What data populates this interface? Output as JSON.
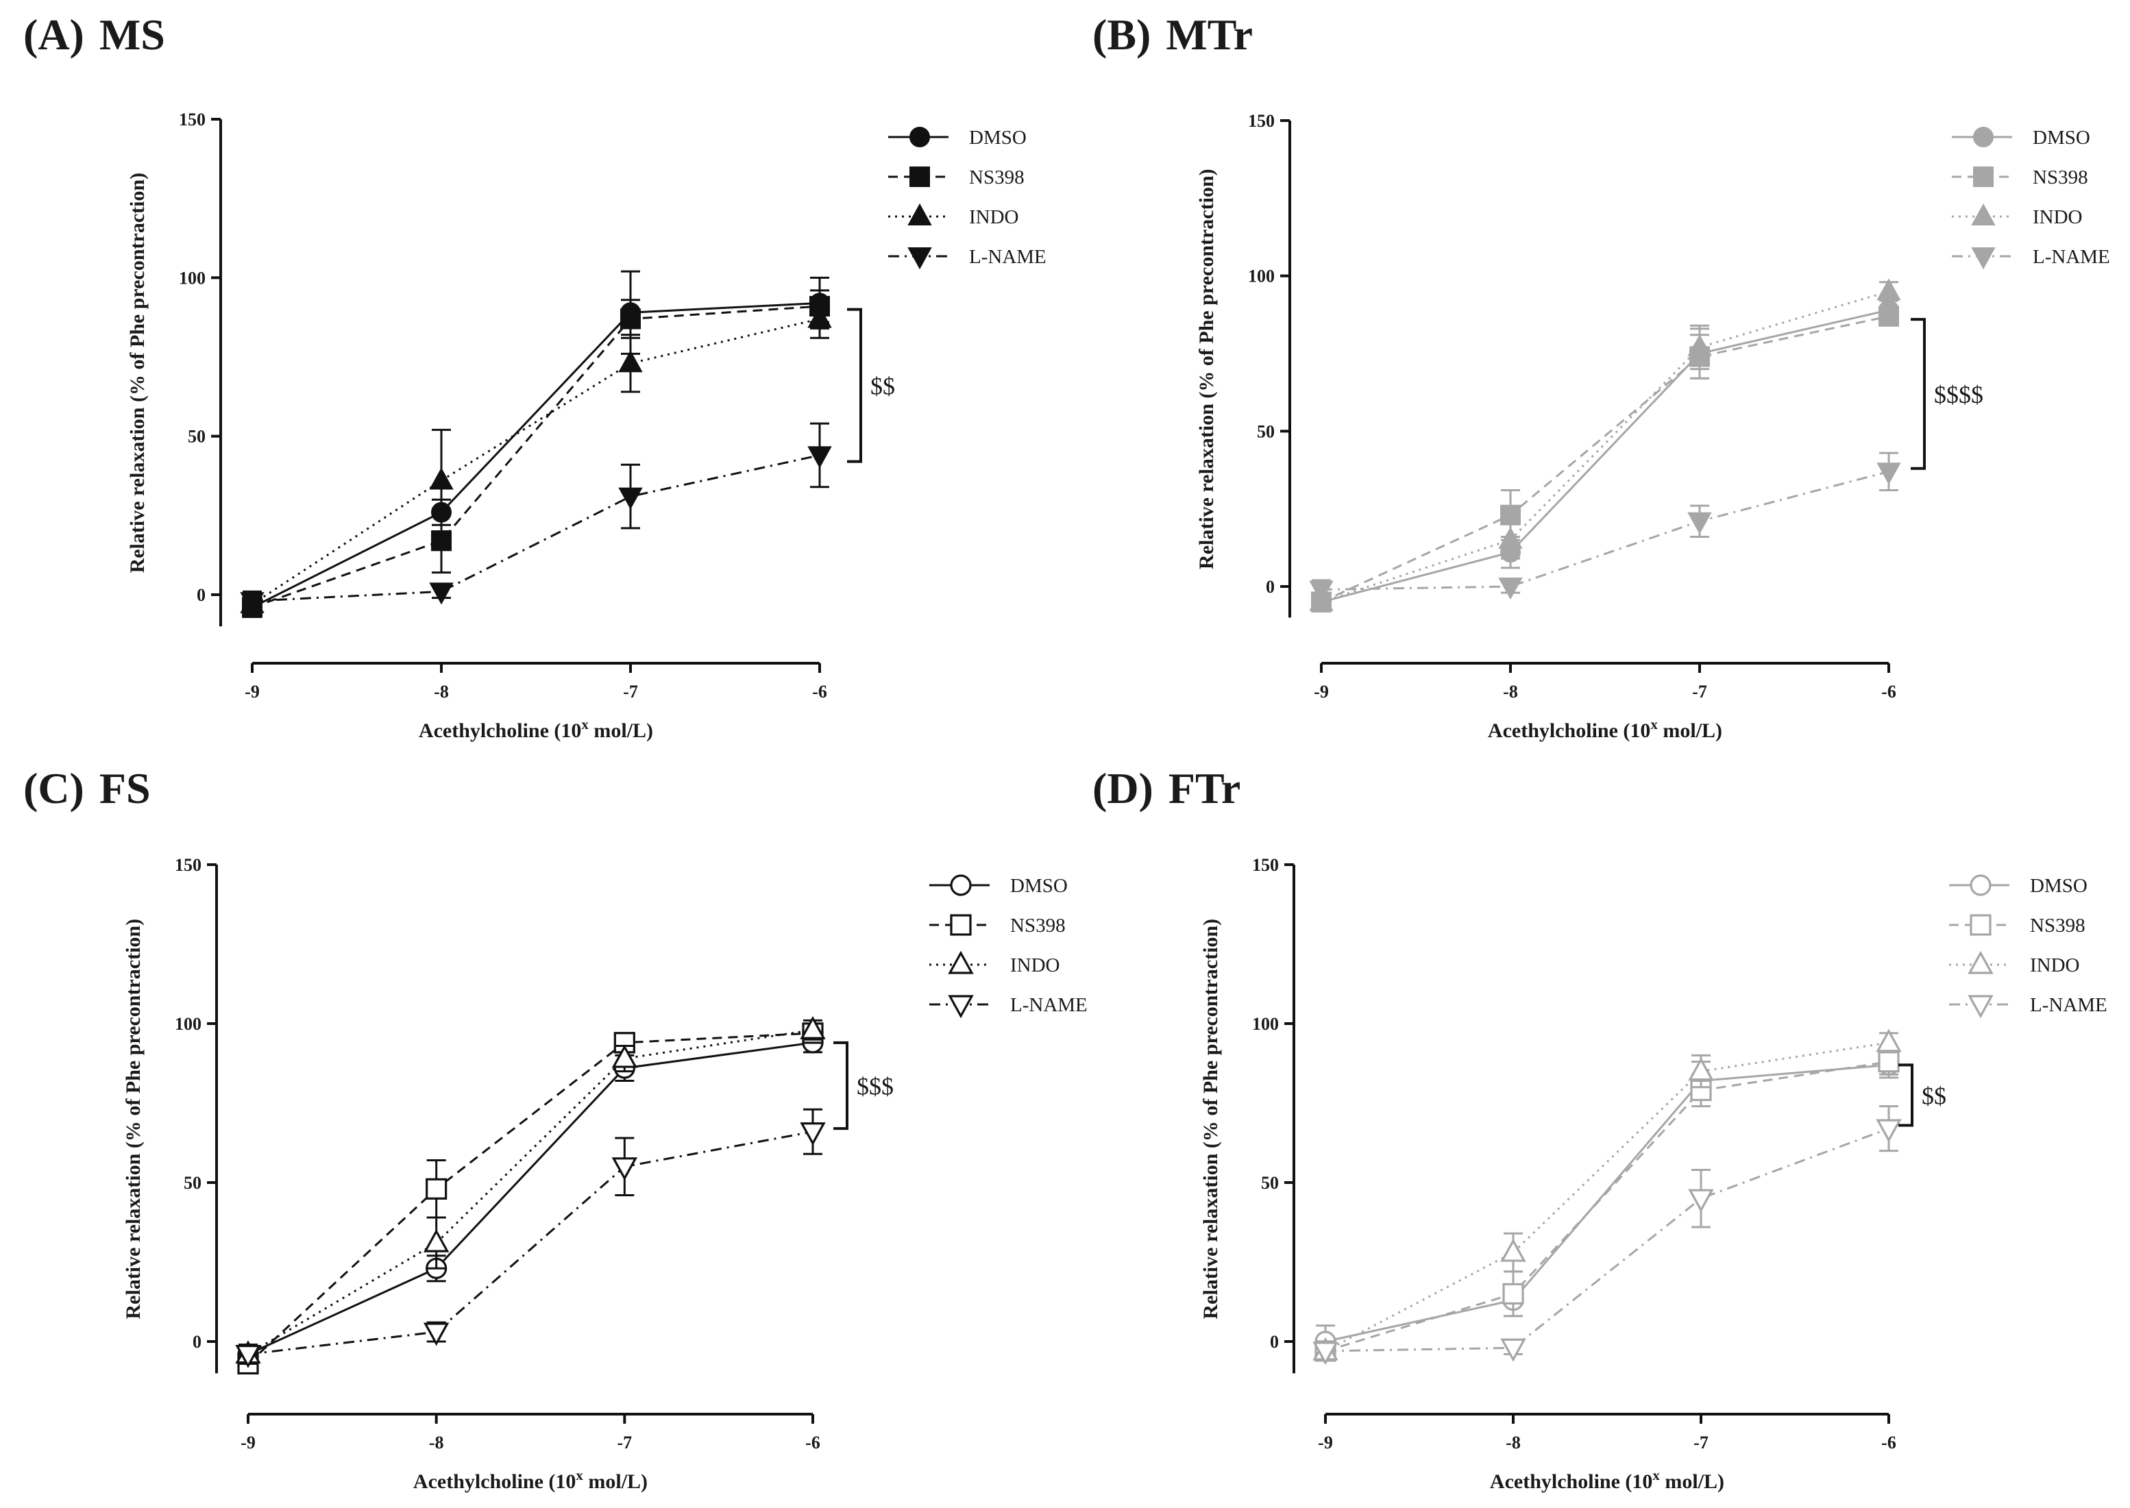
{
  "figure": {
    "panels": [
      {
        "id": "A",
        "letter": "(A)",
        "name": "MS",
        "color": "#111111",
        "filled": true,
        "significance": "$$",
        "sig_from": 42,
        "sig_to": 90
      },
      {
        "id": "B",
        "letter": "(B)",
        "name": "MTr",
        "color": "#a6a6a6",
        "filled": true,
        "significance": "$$$$",
        "sig_from": 38,
        "sig_to": 86
      },
      {
        "id": "C",
        "letter": "(C)",
        "name": "FS",
        "color": "#111111",
        "filled": false,
        "significance": "$$$",
        "sig_from": 67,
        "sig_to": 94
      },
      {
        "id": "D",
        "letter": "(D)",
        "name": "FTr",
        "color": "#a6a6a6",
        "filled": false,
        "significance": "$$",
        "sig_from": 68,
        "sig_to": 87
      }
    ]
  },
  "chart_data": [
    {
      "type": "line",
      "panel": "A",
      "title": "MS",
      "xlabel": "Acethylcholine (10^x mol/L)",
      "ylabel": "Relative relaxation (% of Phe precontraction)",
      "x": [
        -9,
        -8,
        -7,
        -6
      ],
      "xlim": [
        -9,
        -6
      ],
      "ylim": [
        -10,
        150
      ],
      "yticks": [
        0,
        50,
        100,
        150
      ],
      "series": [
        {
          "name": "DMSO",
          "marker": "circle",
          "line": "solid",
          "values": [
            -4,
            26,
            89,
            92
          ],
          "errors": [
            3,
            4,
            13,
            8
          ]
        },
        {
          "name": "NS398",
          "marker": "square",
          "line": "dashed",
          "values": [
            -4,
            17,
            87,
            91
          ],
          "errors": [
            3,
            10,
            6,
            5
          ]
        },
        {
          "name": "INDO",
          "marker": "triangle-up",
          "line": "dotted",
          "values": [
            -3,
            36,
            73,
            87
          ],
          "errors": [
            3,
            16,
            9,
            6
          ]
        },
        {
          "name": "L-NAME",
          "marker": "triangle-down",
          "line": "dashdot",
          "values": [
            -2,
            1,
            31,
            44
          ],
          "errors": [
            3,
            2,
            10,
            10
          ]
        }
      ]
    },
    {
      "type": "line",
      "panel": "B",
      "title": "MTr",
      "xlabel": "Acethylcholine (10^x mol/L)",
      "ylabel": "Relative relaxation (% of Phe precontraction)",
      "x": [
        -9,
        -8,
        -7,
        -6
      ],
      "xlim": [
        -9,
        -6
      ],
      "ylim": [
        -10,
        150
      ],
      "yticks": [
        0,
        50,
        100,
        150
      ],
      "series": [
        {
          "name": "DMSO",
          "marker": "circle",
          "line": "solid",
          "values": [
            -5,
            11,
            75,
            89
          ],
          "errors": [
            3,
            5,
            8,
            3
          ]
        },
        {
          "name": "NS398",
          "marker": "square",
          "line": "dashed",
          "values": [
            -5,
            23,
            74,
            87
          ],
          "errors": [
            3,
            8,
            7,
            3
          ]
        },
        {
          "name": "INDO",
          "marker": "triangle-up",
          "line": "dotted",
          "values": [
            -5,
            15,
            77,
            95
          ],
          "errors": [
            3,
            6,
            7,
            3
          ]
        },
        {
          "name": "L-NAME",
          "marker": "triangle-down",
          "line": "dashdot",
          "values": [
            -1,
            0,
            21,
            37
          ],
          "errors": [
            3,
            2,
            5,
            6
          ]
        }
      ]
    },
    {
      "type": "line",
      "panel": "C",
      "title": "FS",
      "xlabel": "Acethylcholine (10^x mol/L)",
      "ylabel": "Relative relaxation (% of Phe precontraction)",
      "x": [
        -9,
        -8,
        -7,
        -6
      ],
      "xlim": [
        -9,
        -6
      ],
      "ylim": [
        -10,
        150
      ],
      "yticks": [
        0,
        50,
        100,
        150
      ],
      "series": [
        {
          "name": "DMSO",
          "marker": "circle",
          "line": "solid",
          "values": [
            -4,
            23,
            86,
            94
          ],
          "errors": [
            3,
            4,
            4,
            3
          ]
        },
        {
          "name": "NS398",
          "marker": "square",
          "line": "dashed",
          "values": [
            -7,
            48,
            94,
            97
          ],
          "errors": [
            3,
            9,
            3,
            3
          ]
        },
        {
          "name": "INDO",
          "marker": "triangle-up",
          "line": "dotted",
          "values": [
            -4,
            31,
            89,
            98
          ],
          "errors": [
            3,
            8,
            4,
            3
          ]
        },
        {
          "name": "L-NAME",
          "marker": "triangle-down",
          "line": "dashdot",
          "values": [
            -4,
            3,
            55,
            66
          ],
          "errors": [
            3,
            3,
            9,
            7
          ]
        }
      ]
    },
    {
      "type": "line",
      "panel": "D",
      "title": "FTr",
      "xlabel": "Acethylcholine (10^x mol/L)",
      "ylabel": "Relative relaxation (% of Phe precontraction)",
      "x": [
        -9,
        -8,
        -7,
        -6
      ],
      "xlim": [
        -9,
        -6
      ],
      "ylim": [
        -10,
        150
      ],
      "yticks": [
        0,
        50,
        100,
        150
      ],
      "series": [
        {
          "name": "DMSO",
          "marker": "circle",
          "line": "solid",
          "values": [
            0,
            13,
            82,
            87
          ],
          "errors": [
            5,
            5,
            6,
            4
          ]
        },
        {
          "name": "NS398",
          "marker": "square",
          "line": "dashed",
          "values": [
            -3,
            15,
            79,
            88
          ],
          "errors": [
            3,
            7,
            5,
            4
          ]
        },
        {
          "name": "INDO",
          "marker": "triangle-up",
          "line": "dotted",
          "values": [
            -3,
            28,
            85,
            94
          ],
          "errors": [
            3,
            6,
            5,
            3
          ]
        },
        {
          "name": "L-NAME",
          "marker": "triangle-down",
          "line": "dashdot",
          "values": [
            -3,
            -2,
            45,
            67
          ],
          "errors": [
            3,
            2,
            9,
            7
          ]
        }
      ]
    }
  ]
}
